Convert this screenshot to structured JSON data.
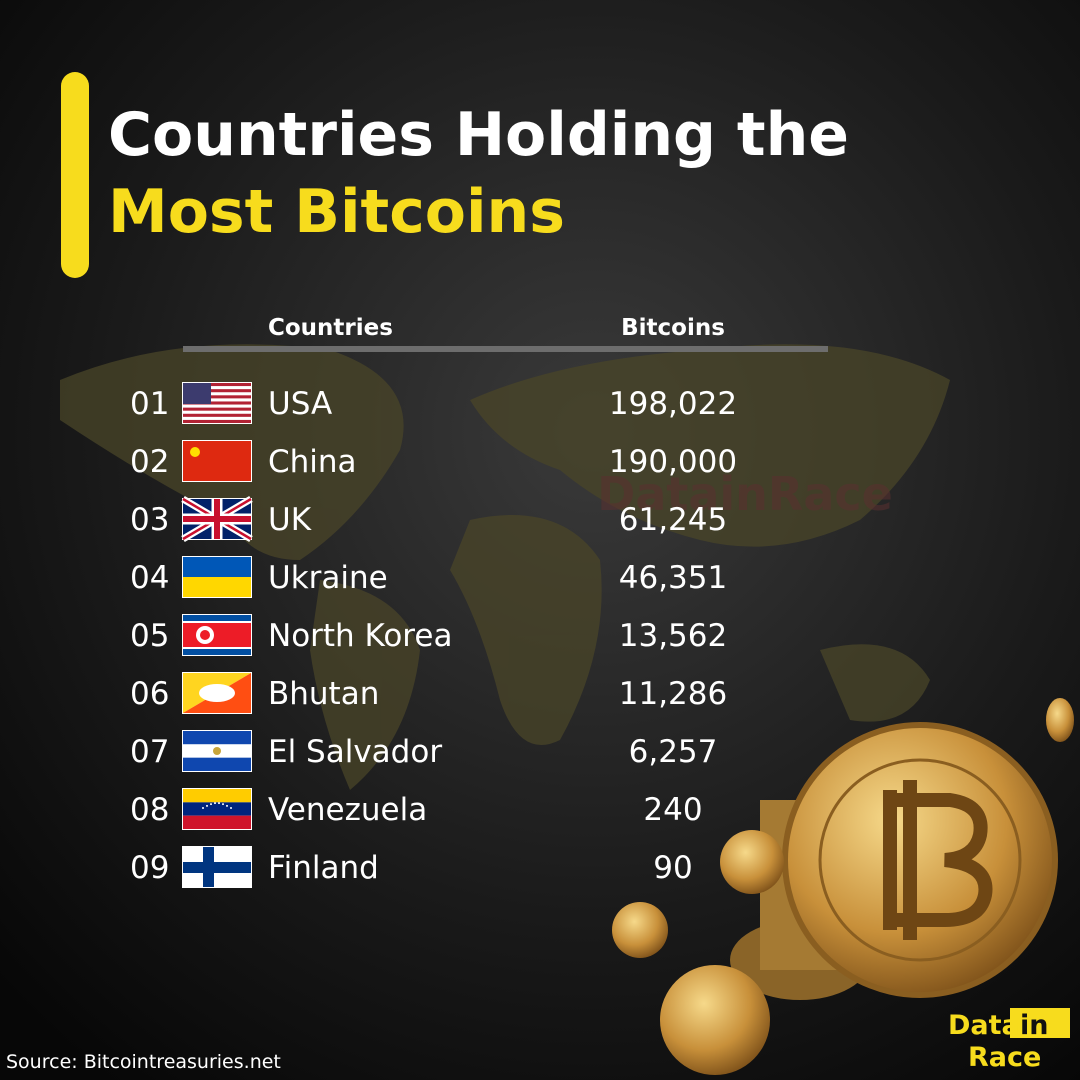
{
  "header": {
    "title_line1": "Countries Holding the",
    "title_line2": "Most Bitcoins"
  },
  "table": {
    "columns": [
      "Countries",
      "Bitcoins"
    ],
    "rows": [
      [
        "01",
        "USA",
        "198,022"
      ],
      [
        "02",
        "China",
        "190,000"
      ],
      [
        "03",
        "UK",
        "61,245"
      ],
      [
        "04",
        "Ukraine",
        "46,351"
      ],
      [
        "05",
        "North Korea",
        "13,562"
      ],
      [
        "06",
        "Bhutan",
        "11,286"
      ],
      [
        "07",
        "El Salvador",
        "6,257"
      ],
      [
        "08",
        "Venezuela",
        "240"
      ],
      [
        "09",
        "Finland",
        "90"
      ]
    ]
  },
  "watermark": "DatainRace",
  "source": "Source: Bitcointreasuries.net",
  "logo": {
    "word1": "Data",
    "word2": "in",
    "word3": "Race"
  }
}
